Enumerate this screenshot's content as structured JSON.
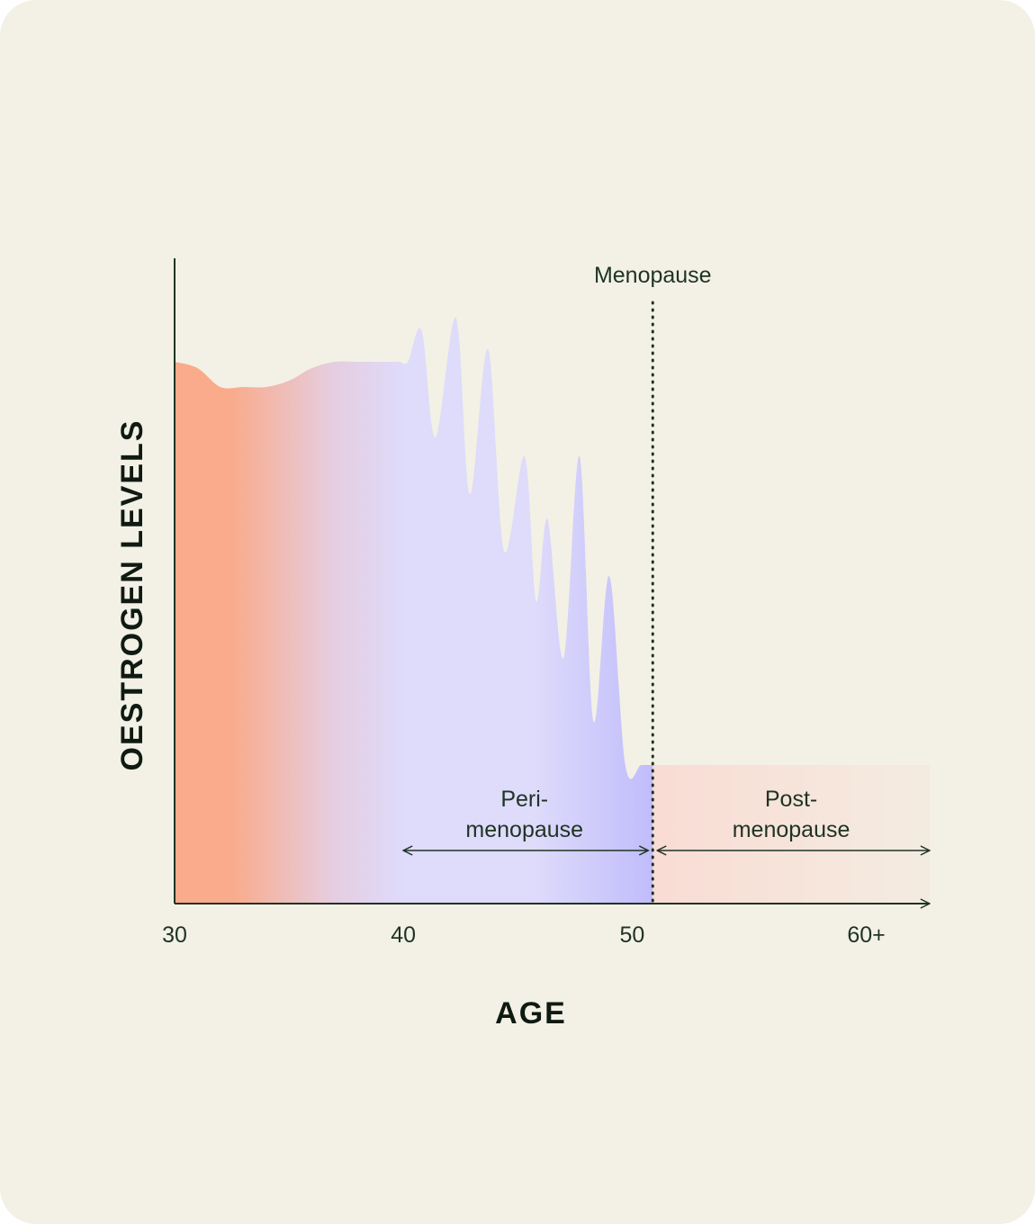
{
  "chart_data": {
    "type": "area",
    "xlabel": "AGE",
    "ylabel": "OESTROGEN LEVELS",
    "x_ticks": [
      "30",
      "40",
      "50",
      "60+"
    ],
    "x_tick_values": [
      30,
      40,
      50,
      60
    ],
    "xlim": [
      30,
      63
    ],
    "ylim": [
      0,
      1
    ],
    "grid": false,
    "series": [
      {
        "x": [
          30,
          31,
          32,
          33,
          34,
          35,
          36,
          37,
          38,
          39,
          39.8,
          40.2,
          40.8,
          41.4,
          42.3,
          42.9,
          43.7,
          44.4,
          45.3,
          45.8,
          46.3,
          47.0,
          47.7,
          48.3,
          49.0,
          49.7,
          50.4,
          50.9
        ],
        "y": [
          0.86,
          0.85,
          0.82,
          0.82,
          0.82,
          0.83,
          0.85,
          0.86,
          0.86,
          0.86,
          0.86,
          0.86,
          0.91,
          0.74,
          0.93,
          0.65,
          0.88,
          0.56,
          0.71,
          0.48,
          0.61,
          0.39,
          0.71,
          0.29,
          0.52,
          0.22,
          0.22,
          0.22
        ]
      },
      {
        "x": [
          50.9,
          63
        ],
        "y": [
          0.22,
          0.22
        ]
      }
    ],
    "colors": {
      "pre": "#f9ab8c",
      "transition": "#e6cde0",
      "peri_light": "#dedbfb",
      "peri_dark": "#c0bcfb",
      "post": "#f9dcd4",
      "post_end": "#f4ebe0",
      "axis": "#1f3324"
    },
    "annotations": {
      "menopause": {
        "label": "Menopause",
        "x": 50.9,
        "style": "dotted-vertical-line"
      },
      "perimenopause": {
        "line1": "Peri-",
        "line2": "menopause",
        "x_start": 40,
        "x_end": 50.9,
        "style": "double-arrow"
      },
      "postmenopause": {
        "line1": "Post-",
        "line2": "menopause",
        "x_start": 50.9,
        "x_end": 63,
        "style": "double-arrow"
      }
    }
  }
}
